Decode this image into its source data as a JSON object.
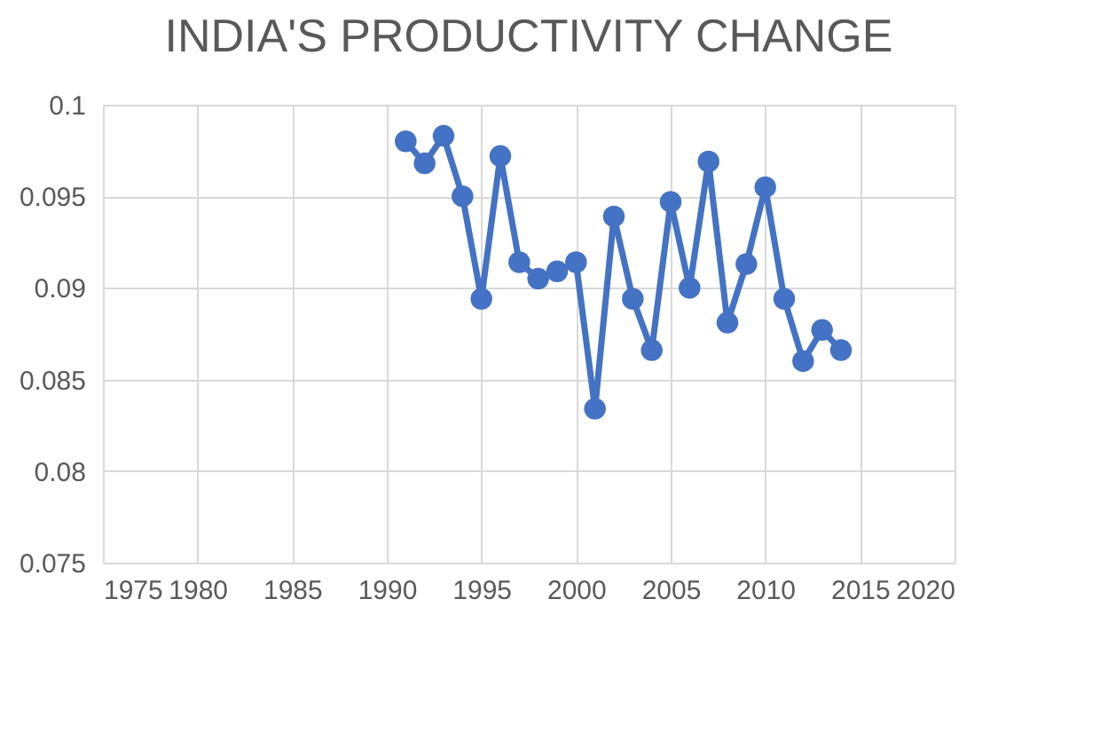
{
  "chart_data": {
    "type": "line",
    "title": "INDIA'S PRODUCTIVITY CHANGE",
    "x": [
      1991,
      1992,
      1993,
      1994,
      1995,
      1996,
      1997,
      1998,
      1999,
      2000,
      2001,
      2002,
      2003,
      2004,
      2005,
      2006,
      2007,
      2008,
      2009,
      2010,
      2011,
      2012,
      2013,
      2014
    ],
    "series": [
      {
        "color": "#4472c4",
        "values": [
          0.098,
          0.0968,
          0.0983,
          0.095,
          0.0894,
          0.0972,
          0.0914,
          0.0905,
          0.0909,
          0.0914,
          0.0834,
          0.0939,
          0.0894,
          0.0866,
          0.0947,
          0.09,
          0.0969,
          0.0881,
          0.0913,
          0.0955,
          0.0894,
          0.086,
          0.0877,
          0.0866
        ]
      }
    ],
    "xlim": [
      1975,
      2020
    ],
    "xticks": [
      1975,
      1980,
      1985,
      1990,
      1995,
      2000,
      2005,
      2010,
      2015,
      2020
    ],
    "ylim": [
      0.075,
      0.1
    ],
    "yticks": [
      0.075,
      0.08,
      0.085,
      0.09,
      0.095,
      0.1
    ],
    "grid": true,
    "marker": "circle",
    "line_style": "solid"
  }
}
